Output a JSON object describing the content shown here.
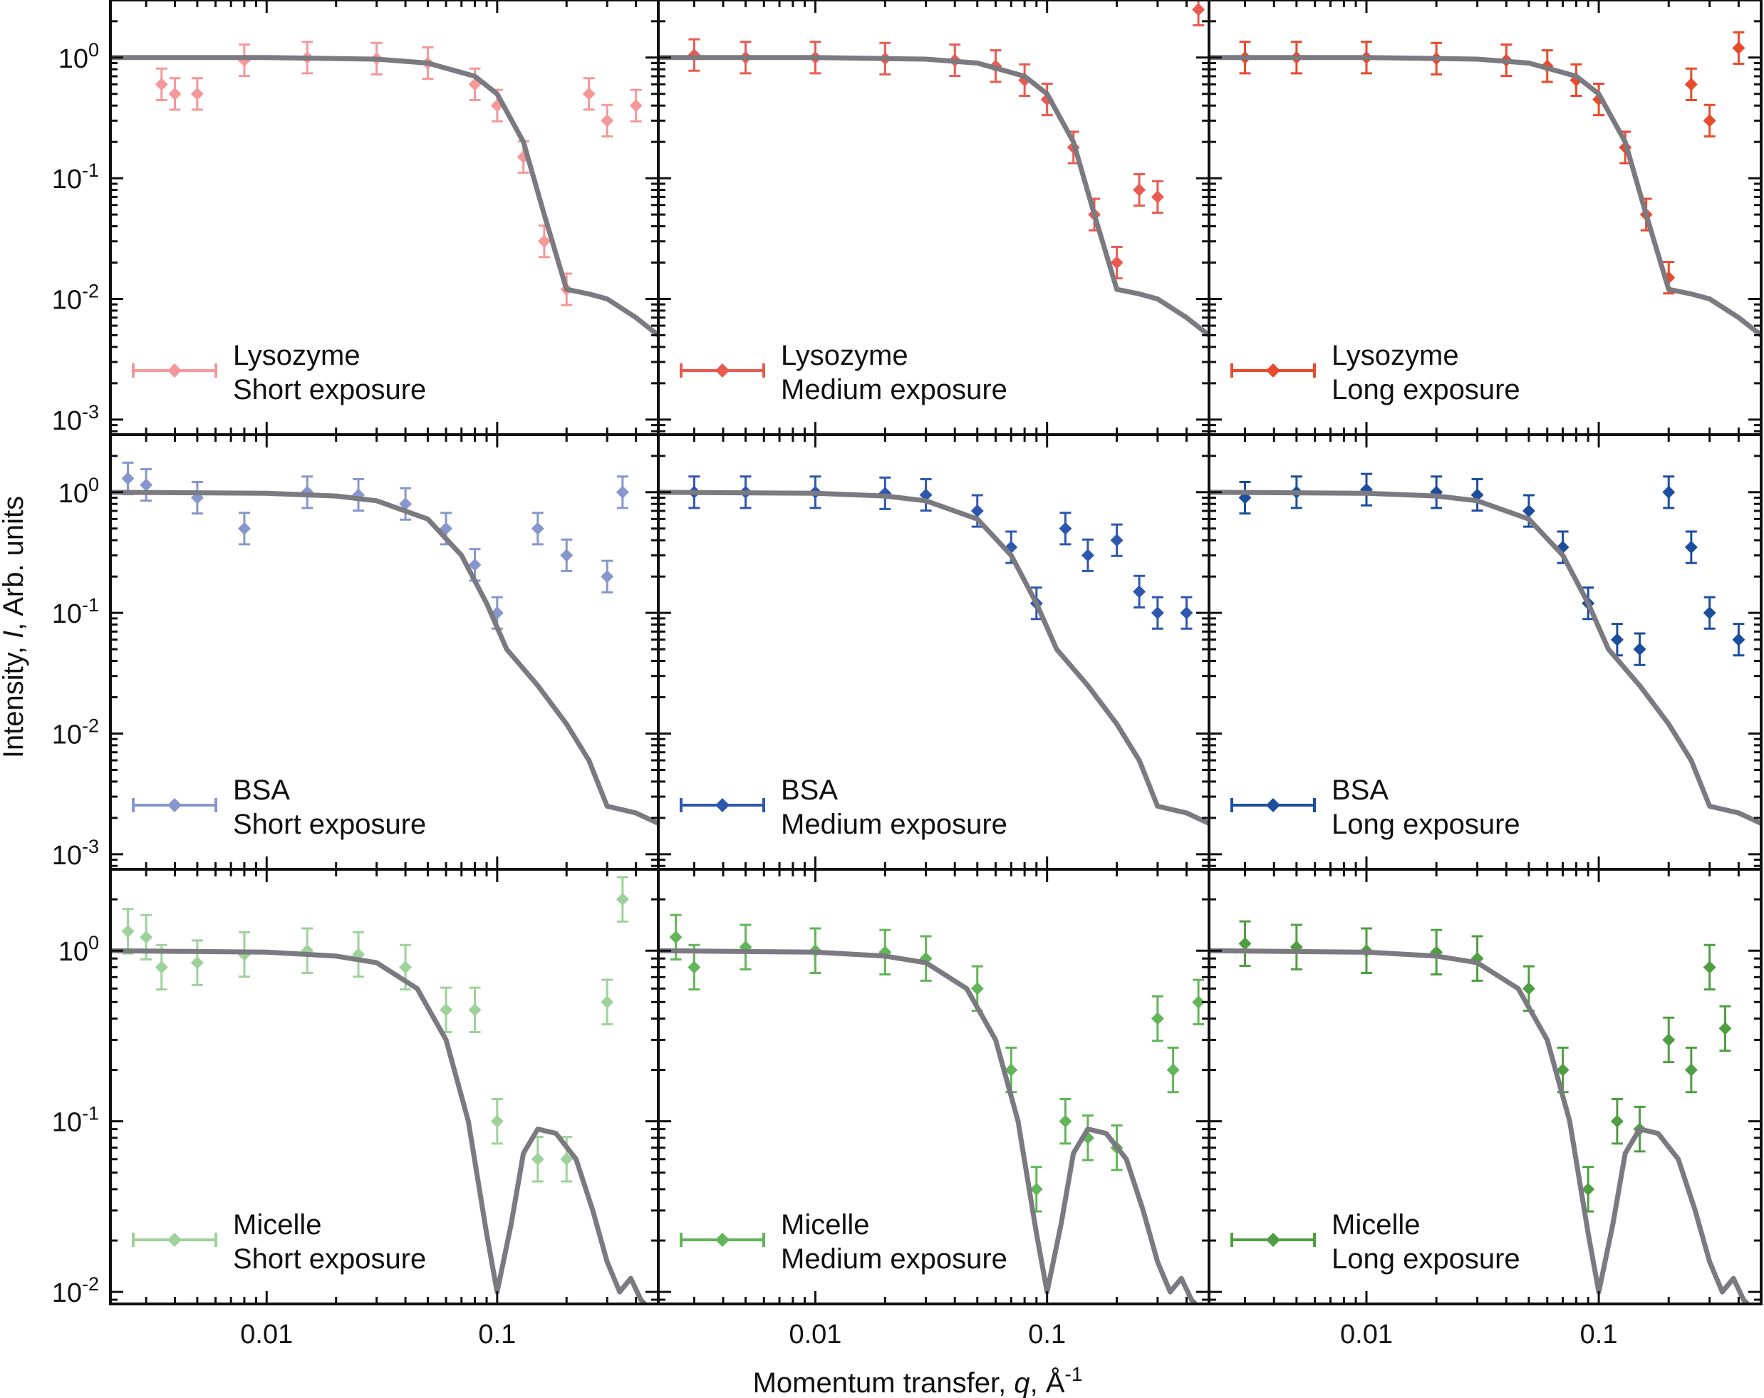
{
  "figure": {
    "ylabel_prefix": "Intensity, ",
    "ylabel_italic": "I",
    "ylabel_suffix": ", Arb. units",
    "xlabel_prefix": "Momentum transfer, ",
    "xlabel_italic": "q",
    "xlabel_suffix": ", Å",
    "xlabel_sup": "-1",
    "x_ticks": [
      "0.01",
      "0.1"
    ],
    "y_ticks_rows": [
      [
        {
          "base": "10",
          "exp": "0"
        },
        {
          "base": "10",
          "exp": "-1"
        },
        {
          "base": "10",
          "exp": "-2"
        },
        {
          "base": "10",
          "exp": "-3"
        }
      ],
      [
        {
          "base": "10",
          "exp": "0"
        },
        {
          "base": "10",
          "exp": "-1"
        },
        {
          "base": "10",
          "exp": "-2"
        },
        {
          "base": "10",
          "exp": "-3"
        }
      ],
      [
        {
          "base": "10",
          "exp": "0"
        },
        {
          "base": "10",
          "exp": "-1"
        },
        {
          "base": "10",
          "exp": "-2"
        }
      ]
    ]
  },
  "chart_data": [
    {
      "type": "scatter",
      "sample": "Lysozyme",
      "exposure": "Short exposure",
      "color": "#f4989a",
      "fit_color": "#7a7a80",
      "xscale": "log",
      "yscale": "log",
      "xlim": [
        0.0021,
        0.5
      ],
      "ylim": [
        0.00075,
        3
      ],
      "series": [
        {
          "name": "Lysozyme Short exposure",
          "x": [
            0.0035,
            0.004,
            0.005,
            0.008,
            0.015,
            0.03,
            0.05,
            0.08,
            0.1,
            0.13,
            0.16,
            0.2,
            0.25,
            0.3,
            0.4
          ],
          "y": [
            0.6,
            0.5,
            0.5,
            0.95,
            1.0,
            0.98,
            0.9,
            0.6,
            0.4,
            0.15,
            0.03,
            0.012,
            0.5,
            0.3,
            0.4
          ]
        },
        {
          "name": "fit",
          "x": [
            0.002,
            0.01,
            0.03,
            0.05,
            0.08,
            0.1,
            0.13,
            0.16,
            0.2,
            0.25,
            0.3,
            0.4,
            0.5
          ],
          "y": [
            1,
            1,
            0.97,
            0.9,
            0.7,
            0.5,
            0.2,
            0.05,
            0.012,
            0.011,
            0.01,
            0.007,
            0.005
          ]
        }
      ]
    },
    {
      "type": "scatter",
      "sample": "Lysozyme",
      "exposure": "Medium exposure",
      "color": "#ea5a50",
      "fit_color": "#7a7a80",
      "xscale": "log",
      "yscale": "log",
      "xlim": [
        0.0021,
        0.5
      ],
      "ylim": [
        0.00075,
        3
      ],
      "series": [
        {
          "name": "Lysozyme Medium exposure",
          "x": [
            0.003,
            0.005,
            0.01,
            0.02,
            0.04,
            0.06,
            0.08,
            0.1,
            0.13,
            0.16,
            0.2,
            0.25,
            0.3,
            0.45
          ],
          "y": [
            1.05,
            1.0,
            1.0,
            0.98,
            0.95,
            0.85,
            0.65,
            0.45,
            0.18,
            0.05,
            0.02,
            0.08,
            0.07,
            2.5
          ]
        },
        {
          "name": "fit",
          "x": [
            0.002,
            0.01,
            0.03,
            0.05,
            0.08,
            0.1,
            0.13,
            0.16,
            0.2,
            0.25,
            0.3,
            0.4,
            0.5
          ],
          "y": [
            1,
            1,
            0.97,
            0.9,
            0.7,
            0.5,
            0.2,
            0.05,
            0.012,
            0.011,
            0.01,
            0.007,
            0.005
          ]
        }
      ]
    },
    {
      "type": "scatter",
      "sample": "Lysozyme",
      "exposure": "Long exposure",
      "color": "#e84a2c",
      "fit_color": "#7a7a80",
      "xscale": "log",
      "yscale": "log",
      "xlim": [
        0.0021,
        0.5
      ],
      "ylim": [
        0.00075,
        3
      ],
      "series": [
        {
          "name": "Lysozyme Long exposure",
          "x": [
            0.003,
            0.005,
            0.01,
            0.02,
            0.04,
            0.06,
            0.08,
            0.1,
            0.13,
            0.16,
            0.2,
            0.25,
            0.3,
            0.4
          ],
          "y": [
            1.0,
            1.0,
            1.0,
            0.98,
            0.95,
            0.85,
            0.65,
            0.45,
            0.18,
            0.05,
            0.015,
            0.6,
            0.3,
            1.2
          ]
        },
        {
          "name": "fit",
          "x": [
            0.002,
            0.01,
            0.03,
            0.05,
            0.08,
            0.1,
            0.13,
            0.16,
            0.2,
            0.25,
            0.3,
            0.4,
            0.5
          ],
          "y": [
            1,
            1,
            0.97,
            0.9,
            0.7,
            0.5,
            0.2,
            0.05,
            0.012,
            0.011,
            0.01,
            0.007,
            0.005
          ]
        }
      ]
    },
    {
      "type": "scatter",
      "sample": "BSA",
      "exposure": "Short exposure",
      "color": "#8796cc",
      "fit_color": "#7a7a80",
      "xscale": "log",
      "yscale": "log",
      "xlim": [
        0.0021,
        0.5
      ],
      "ylim": [
        0.00075,
        3
      ],
      "series": [
        {
          "name": "BSA Short exposure",
          "x": [
            0.0025,
            0.003,
            0.005,
            0.008,
            0.015,
            0.025,
            0.04,
            0.06,
            0.08,
            0.1,
            0.15,
            0.2,
            0.3,
            0.35
          ],
          "y": [
            1.3,
            1.15,
            0.9,
            0.5,
            1.0,
            0.95,
            0.8,
            0.5,
            0.25,
            0.1,
            0.5,
            0.3,
            0.2,
            1.0
          ]
        },
        {
          "name": "fit",
          "x": [
            0.002,
            0.01,
            0.02,
            0.03,
            0.05,
            0.07,
            0.09,
            0.11,
            0.15,
            0.2,
            0.25,
            0.3,
            0.4,
            0.5
          ],
          "y": [
            1,
            0.98,
            0.93,
            0.85,
            0.6,
            0.3,
            0.12,
            0.05,
            0.025,
            0.012,
            0.006,
            0.0025,
            0.0022,
            0.0018
          ]
        }
      ]
    },
    {
      "type": "scatter",
      "sample": "BSA",
      "exposure": "Medium exposure",
      "color": "#2e57b0",
      "fit_color": "#7a7a80",
      "xscale": "log",
      "yscale": "log",
      "xlim": [
        0.0021,
        0.5
      ],
      "ylim": [
        0.00075,
        3
      ],
      "series": [
        {
          "name": "BSA Medium exposure",
          "x": [
            0.003,
            0.005,
            0.01,
            0.02,
            0.03,
            0.05,
            0.07,
            0.09,
            0.12,
            0.15,
            0.2,
            0.25,
            0.3,
            0.4
          ],
          "y": [
            1.0,
            1.0,
            1.0,
            0.98,
            0.95,
            0.7,
            0.35,
            0.12,
            0.5,
            0.3,
            0.4,
            0.15,
            0.1,
            0.1
          ]
        },
        {
          "name": "fit",
          "x": [
            0.002,
            0.01,
            0.02,
            0.03,
            0.05,
            0.07,
            0.09,
            0.11,
            0.15,
            0.2,
            0.25,
            0.3,
            0.4,
            0.5
          ],
          "y": [
            1,
            0.98,
            0.93,
            0.85,
            0.6,
            0.3,
            0.12,
            0.05,
            0.025,
            0.012,
            0.006,
            0.0025,
            0.0022,
            0.0018
          ]
        }
      ]
    },
    {
      "type": "scatter",
      "sample": "BSA",
      "exposure": "Long exposure",
      "color": "#1c4e9e",
      "fit_color": "#7a7a80",
      "xscale": "log",
      "yscale": "log",
      "xlim": [
        0.0021,
        0.5
      ],
      "ylim": [
        0.00075,
        3
      ],
      "series": [
        {
          "name": "BSA Long exposure",
          "x": [
            0.003,
            0.005,
            0.01,
            0.02,
            0.03,
            0.05,
            0.07,
            0.09,
            0.12,
            0.15,
            0.2,
            0.25,
            0.3,
            0.4
          ],
          "y": [
            0.9,
            1.0,
            1.05,
            1.0,
            0.95,
            0.7,
            0.35,
            0.12,
            0.06,
            0.05,
            1.0,
            0.35,
            0.1,
            0.06
          ]
        },
        {
          "name": "fit",
          "x": [
            0.002,
            0.01,
            0.02,
            0.03,
            0.05,
            0.07,
            0.09,
            0.11,
            0.15,
            0.2,
            0.25,
            0.3,
            0.4,
            0.5
          ],
          "y": [
            1,
            0.98,
            0.93,
            0.85,
            0.6,
            0.3,
            0.12,
            0.05,
            0.025,
            0.012,
            0.006,
            0.0025,
            0.0022,
            0.0018
          ]
        }
      ]
    },
    {
      "type": "scatter",
      "sample": "Micelle",
      "exposure": "Short exposure",
      "color": "#9ed29a",
      "fit_color": "#7a7a80",
      "xscale": "log",
      "yscale": "log",
      "xlim": [
        0.0021,
        0.5
      ],
      "ylim": [
        0.0085,
        3
      ],
      "series": [
        {
          "name": "Micelle Short exposure",
          "x": [
            0.0025,
            0.003,
            0.0035,
            0.005,
            0.008,
            0.015,
            0.025,
            0.04,
            0.06,
            0.08,
            0.1,
            0.15,
            0.2,
            0.3,
            0.35
          ],
          "y": [
            1.3,
            1.2,
            0.8,
            0.85,
            0.95,
            1.0,
            0.95,
            0.8,
            0.45,
            0.45,
            0.1,
            0.06,
            0.06,
            0.5,
            2.0
          ]
        },
        {
          "name": "fit",
          "x": [
            0.002,
            0.01,
            0.02,
            0.03,
            0.045,
            0.06,
            0.075,
            0.09,
            0.1,
            0.115,
            0.13,
            0.15,
            0.18,
            0.22,
            0.26,
            0.3,
            0.34,
            0.38,
            0.42,
            0.5
          ],
          "y": [
            1,
            0.98,
            0.93,
            0.85,
            0.6,
            0.3,
            0.1,
            0.022,
            0.01,
            0.025,
            0.065,
            0.09,
            0.085,
            0.06,
            0.03,
            0.015,
            0.01,
            0.012,
            0.009,
            0.007
          ]
        }
      ]
    },
    {
      "type": "scatter",
      "sample": "Micelle",
      "exposure": "Medium exposure",
      "color": "#62b558",
      "fit_color": "#7a7a80",
      "xscale": "log",
      "yscale": "log",
      "xlim": [
        0.0021,
        0.5
      ],
      "ylim": [
        0.0085,
        3
      ],
      "series": [
        {
          "name": "Micelle Medium exposure",
          "x": [
            0.0025,
            0.003,
            0.005,
            0.01,
            0.02,
            0.03,
            0.05,
            0.07,
            0.09,
            0.12,
            0.15,
            0.2,
            0.3,
            0.35,
            0.45
          ],
          "y": [
            1.2,
            0.8,
            1.05,
            1.0,
            0.98,
            0.9,
            0.6,
            0.2,
            0.04,
            0.1,
            0.08,
            0.07,
            0.4,
            0.2,
            0.5
          ]
        },
        {
          "name": "fit",
          "x": [
            0.002,
            0.01,
            0.02,
            0.03,
            0.045,
            0.06,
            0.075,
            0.09,
            0.1,
            0.115,
            0.13,
            0.15,
            0.18,
            0.22,
            0.26,
            0.3,
            0.34,
            0.38,
            0.42,
            0.5
          ],
          "y": [
            1,
            0.98,
            0.93,
            0.85,
            0.6,
            0.3,
            0.1,
            0.022,
            0.01,
            0.025,
            0.065,
            0.09,
            0.085,
            0.06,
            0.03,
            0.015,
            0.01,
            0.012,
            0.009,
            0.007
          ]
        }
      ]
    },
    {
      "type": "scatter",
      "sample": "Micelle",
      "exposure": "Long exposure",
      "color": "#4f9e42",
      "fit_color": "#7a7a80",
      "xscale": "log",
      "yscale": "log",
      "xlim": [
        0.0021,
        0.5
      ],
      "ylim": [
        0.0085,
        3
      ],
      "series": [
        {
          "name": "Micelle Long exposure",
          "x": [
            0.003,
            0.005,
            0.01,
            0.02,
            0.03,
            0.05,
            0.07,
            0.09,
            0.12,
            0.15,
            0.2,
            0.25,
            0.3,
            0.35
          ],
          "y": [
            1.1,
            1.05,
            1.0,
            0.98,
            0.9,
            0.6,
            0.2,
            0.04,
            0.1,
            0.09,
            0.3,
            0.2,
            0.8,
            0.35
          ]
        },
        {
          "name": "fit",
          "x": [
            0.002,
            0.01,
            0.02,
            0.03,
            0.045,
            0.06,
            0.075,
            0.09,
            0.1,
            0.115,
            0.13,
            0.15,
            0.18,
            0.22,
            0.26,
            0.3,
            0.34,
            0.38,
            0.42,
            0.5
          ],
          "y": [
            1,
            0.98,
            0.93,
            0.85,
            0.6,
            0.3,
            0.1,
            0.022,
            0.01,
            0.025,
            0.065,
            0.09,
            0.085,
            0.06,
            0.03,
            0.015,
            0.01,
            0.012,
            0.009,
            0.007
          ]
        }
      ]
    }
  ]
}
